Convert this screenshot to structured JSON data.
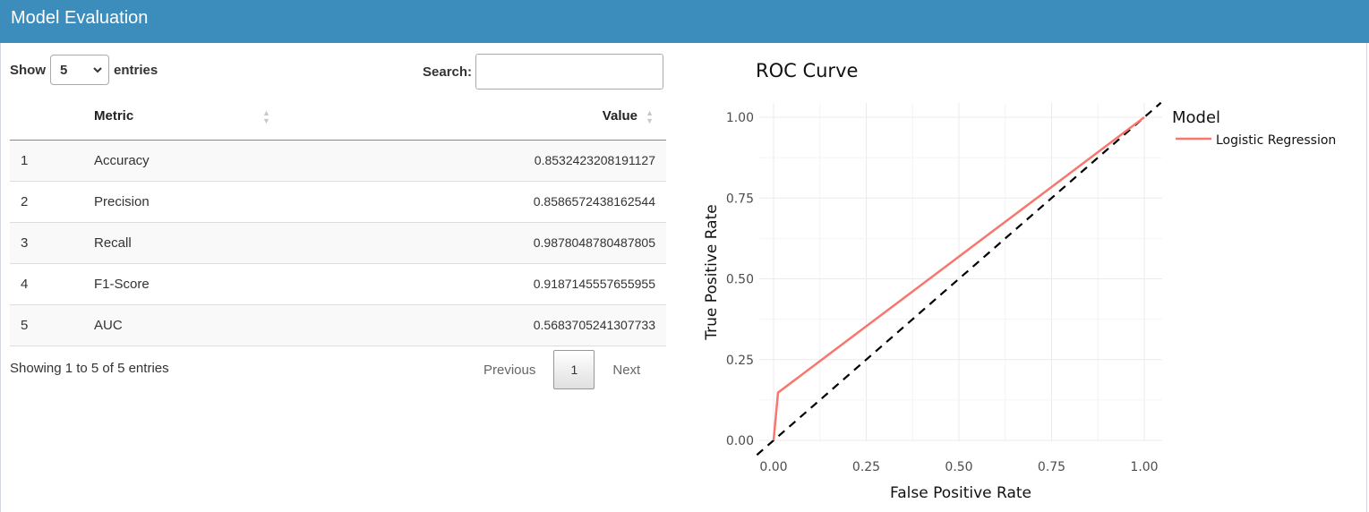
{
  "header": {
    "title": "Model Evaluation"
  },
  "table_controls": {
    "show_label": "Show",
    "entries_label": "entries",
    "page_length": "5",
    "search_label": "Search:",
    "search_value": ""
  },
  "table": {
    "columns": [
      "",
      "Metric",
      "Value"
    ],
    "rows": [
      {
        "index": "1",
        "metric": "Accuracy",
        "value": "0.8532423208191127"
      },
      {
        "index": "2",
        "metric": "Precision",
        "value": "0.8586572438162544"
      },
      {
        "index": "3",
        "metric": "Recall",
        "value": "0.9878048780487805"
      },
      {
        "index": "4",
        "metric": "F1-Score",
        "value": "0.9187145557655955"
      },
      {
        "index": "5",
        "metric": "AUC",
        "value": "0.5683705241307733"
      }
    ],
    "info": "Showing 1 to 5 of 5 entries",
    "pagination": {
      "previous": "Previous",
      "current_page": "1",
      "next": "Next"
    }
  },
  "chart_data": {
    "type": "line",
    "title": "ROC Curve",
    "xlabel": "False Positive Rate",
    "ylabel": "True Positive Rate",
    "xlim": [
      0,
      1
    ],
    "ylim": [
      0,
      1
    ],
    "x_ticks": [
      "0.00",
      "0.25",
      "0.50",
      "0.75",
      "1.00"
    ],
    "y_ticks": [
      "0.00",
      "0.25",
      "0.50",
      "0.75",
      "1.00"
    ],
    "grid": true,
    "legend": {
      "title": "Model",
      "placement": "right"
    },
    "series": [
      {
        "name": "Logistic Regression",
        "color": "#f8766d",
        "points": [
          [
            0,
            0
          ],
          [
            0.012,
            0.148
          ],
          [
            1,
            1
          ]
        ]
      }
    ],
    "reference_line": {
      "points": [
        [
          0,
          0
        ],
        [
          1,
          1
        ]
      ],
      "color": "#000000",
      "style": "dashed"
    }
  }
}
